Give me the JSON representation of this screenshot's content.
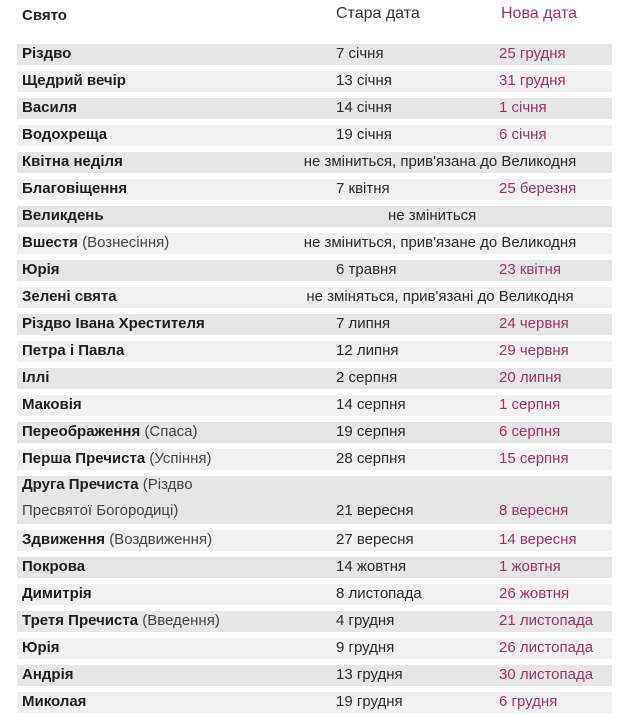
{
  "header": {
    "col_holiday": "Свято",
    "col_old": "Стара дата",
    "col_new": "Нова дата"
  },
  "rows": [
    {
      "name": "Різдво",
      "note": "",
      "old": "7 січня",
      "new": "25 грудня"
    },
    {
      "name": "Щедрий вечір",
      "note": "",
      "old": "13 січня",
      "new": "31 грудня"
    },
    {
      "name": "Василя",
      "note": "",
      "old": "14 січня",
      "new": "1 січня"
    },
    {
      "name": "Водохреща",
      "note": "",
      "old": "19 січня",
      "new": "6 січня"
    },
    {
      "name": "Квітна неділя",
      "note": "",
      "span": "не зміниться, прив'язана до Великодня"
    },
    {
      "name": "Благовіщення",
      "note": "",
      "old": "7 квітня",
      "new": "25 березня"
    },
    {
      "name": "Великдень",
      "note": "",
      "center": "не зміниться"
    },
    {
      "name": "Вшестя",
      "note": "(Вознесіння)",
      "span": "не зміниться, прив'язане до Великодня"
    },
    {
      "name": "Юрія",
      "note": "",
      "old": "6 травня",
      "new": "23 квітня"
    },
    {
      "name": "Зелені свята",
      "note": "",
      "span": "не зміняться, прив'язані до Великодня"
    },
    {
      "name": "Різдво Івана Хрестителя",
      "note": "",
      "old": "7 липня",
      "new": "24 червня"
    },
    {
      "name": "Петра і Павла",
      "note": "",
      "old": "12 липня",
      "new": "29 червня"
    },
    {
      "name": "Іллі",
      "note": "",
      "old": "2 серпня",
      "new": "20 липня"
    },
    {
      "name": "Маковія",
      "note": "",
      "old": "14 серпня",
      "new": "1 серпня"
    },
    {
      "name": "Переображення",
      "note": "(Спаса)",
      "old": "19 серпня",
      "new": "6 серпня"
    },
    {
      "name": "Перша Пречиста",
      "note": "(Успіння)",
      "old": "28 серпня",
      "new": "15 серпня"
    },
    {
      "name": "Друга Пречиста",
      "note": "(Різдво",
      "note2": "Пресвятої Богородиці)",
      "old": "21 вересня",
      "new": "8 вересня",
      "tall": true
    },
    {
      "name": "Здвиження",
      "note": "(Воздвиження)",
      "old": "27 вересня",
      "new": "14 вересня"
    },
    {
      "name": "Покрова",
      "note": "",
      "old": "14 жовтня",
      "new": "1 жовтня"
    },
    {
      "name": "Димитрія",
      "note": "",
      "old": "8 листопада",
      "new": "26 жовтня"
    },
    {
      "name": "Третя Пречиста",
      "note": "(Введення)",
      "old": "4 грудня",
      "new": "21 листопада"
    },
    {
      "name": "Юрія",
      "note": "",
      "old": "9 грудня",
      "new": "26 листопада"
    },
    {
      "name": "Андрія",
      "note": "",
      "old": "13 грудня",
      "new": "30 листопада"
    },
    {
      "name": "Миколая",
      "note": "",
      "old": "19 грудня",
      "new": "6 грудня"
    }
  ],
  "colors": {
    "new_date": "#a3306d",
    "band": "#e6e6e6"
  }
}
